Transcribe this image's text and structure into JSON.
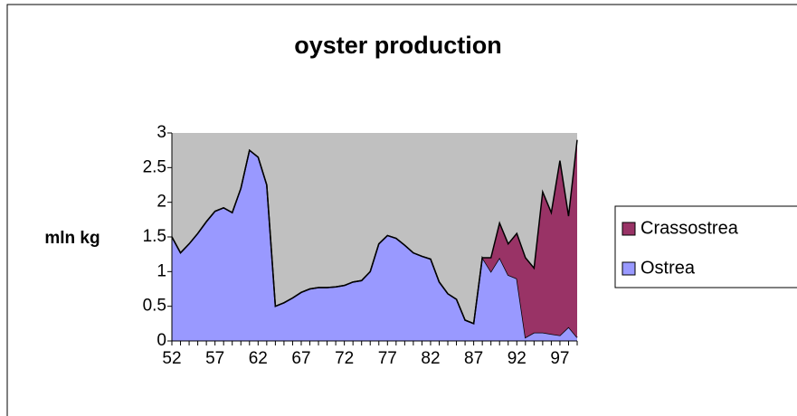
{
  "chart_data": {
    "type": "stacked-area",
    "title": "oyster production",
    "y_label": "mln kg",
    "categories": [
      "52",
      null,
      null,
      null,
      null,
      "57",
      null,
      null,
      null,
      null,
      "62",
      null,
      null,
      null,
      null,
      "67",
      null,
      null,
      null,
      null,
      "72",
      null,
      null,
      null,
      null,
      "77",
      null,
      null,
      null,
      null,
      "82",
      null,
      null,
      null,
      null,
      "87",
      null,
      null,
      null,
      null,
      "92",
      null,
      null,
      null,
      null,
      "97",
      null,
      null
    ],
    "series": [
      {
        "name": "Ostrea",
        "color": "#9999ff",
        "values": [
          1.5,
          1.27,
          1.4,
          1.55,
          1.72,
          1.87,
          1.92,
          1.85,
          2.2,
          2.75,
          2.65,
          2.25,
          0.5,
          0.55,
          0.62,
          0.7,
          0.75,
          0.77,
          0.77,
          0.78,
          0.8,
          0.85,
          0.87,
          1.0,
          1.4,
          1.52,
          1.48,
          1.38,
          1.27,
          1.22,
          1.18,
          0.85,
          0.68,
          0.6,
          0.3,
          0.25,
          1.2,
          1.0,
          1.2,
          0.95,
          0.9,
          0.05,
          0.12,
          0.12,
          0.1,
          0.08,
          0.2,
          0.05
        ]
      },
      {
        "name": "Crassostrea",
        "color": "#993366",
        "values": [
          0,
          0,
          0,
          0,
          0,
          0,
          0,
          0,
          0,
          0,
          0,
          0,
          0,
          0,
          0,
          0,
          0,
          0,
          0,
          0,
          0,
          0,
          0,
          0,
          0,
          0,
          0,
          0,
          0,
          0,
          0,
          0,
          0,
          0,
          0,
          0,
          0,
          0.2,
          0.5,
          0.45,
          0.65,
          1.15,
          0.93,
          2.03,
          1.75,
          2.52,
          1.6,
          2.85
        ]
      }
    ],
    "ylim": [
      0,
      3
    ],
    "yticks": [
      0,
      0.5,
      1,
      1.5,
      2,
      2.5,
      3
    ],
    "plot_background": "#c0c0c0",
    "legend": "right"
  }
}
